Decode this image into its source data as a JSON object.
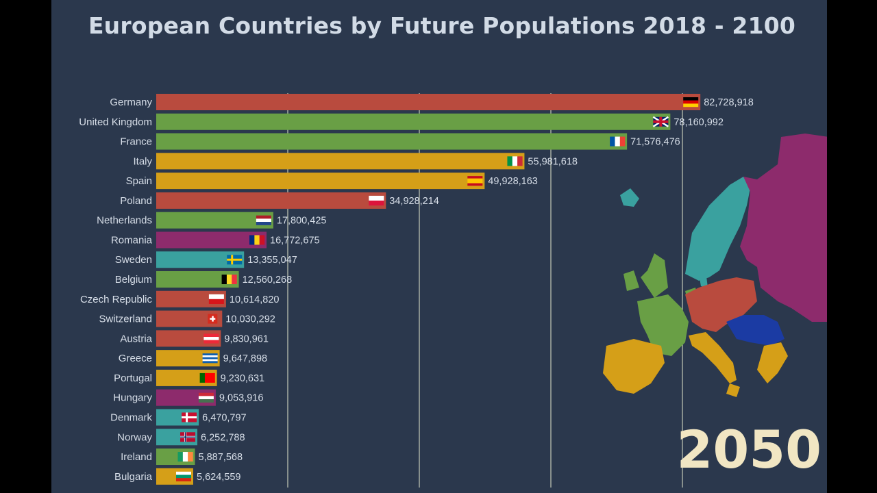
{
  "title": "European Countries by Future Populations 2018 - 2100",
  "year": "2050",
  "chart_data": {
    "type": "bar",
    "orientation": "horizontal",
    "title": "European Countries by Future Populations 2018 - 2100",
    "xlim": [
      0,
      90000000
    ],
    "gridlines": [
      20000000,
      40000000,
      60000000,
      80000000
    ],
    "grid": true,
    "categories": [
      "Germany",
      "United Kingdom",
      "France",
      "Italy",
      "Spain",
      "Poland",
      "Netherlands",
      "Romania",
      "Sweden",
      "Belgium",
      "Czech Republic",
      "Switzerland",
      "Austria",
      "Greece",
      "Portugal",
      "Hungary",
      "Denmark",
      "Norway",
      "Ireland",
      "Bulgaria"
    ],
    "values": [
      82728918,
      78160992,
      71576476,
      55981618,
      49928163,
      34928214,
      17800425,
      16772675,
      13355047,
      12560268,
      10614820,
      10030292,
      9830961,
      9647898,
      9230631,
      9053916,
      6470797,
      6252788,
      5887568,
      5624559
    ],
    "value_labels": [
      "82,728,918",
      "78,160,992",
      "71,576,476",
      "55,981,618",
      "49,928,163",
      "34,928,214",
      "17,800,425",
      "16,772,675",
      "13,355,047",
      "12,560,268",
      "10,614,820",
      "10,030,292",
      "9,830,961",
      "9,647,898",
      "9,230,631",
      "9,053,916",
      "6,470,797",
      "6,252,788",
      "5,887,568",
      "5,624,559"
    ],
    "regions": [
      "central",
      "western",
      "western",
      "southern",
      "southern",
      "central",
      "western",
      "eastern",
      "northern",
      "western",
      "central",
      "central",
      "central",
      "southern",
      "southern",
      "eastern",
      "northern",
      "northern",
      "western",
      "southern"
    ],
    "flags": [
      "de-flag-icon",
      "gb-flag-icon",
      "fr-flag-icon",
      "it-flag-icon",
      "es-flag-icon",
      "pl-flag-icon",
      "nl-flag-icon",
      "ro-flag-icon",
      "se-flag-icon",
      "be-flag-icon",
      "cz-flag-icon",
      "ch-flag-icon",
      "at-flag-icon",
      "gr-flag-icon",
      "pt-flag-icon",
      "hu-flag-icon",
      "dk-flag-icon",
      "no-flag-icon",
      "ie-flag-icon",
      "bg-flag-icon"
    ],
    "region_colors": {
      "central": "#b94b3e",
      "western": "#699f45",
      "southern": "#d59f18",
      "eastern": "#8d2b6c",
      "northern": "#3aa19f",
      "balkan": "#1b3ba3"
    }
  }
}
